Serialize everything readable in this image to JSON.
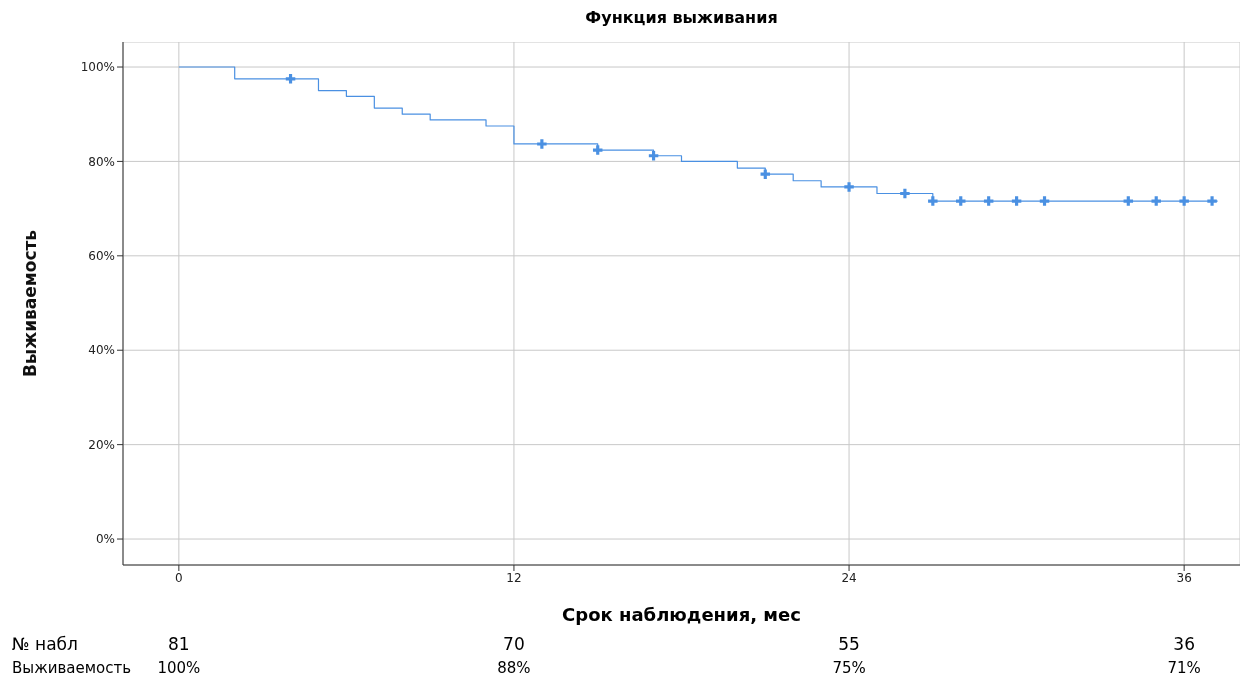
{
  "chart_data": {
    "type": "step",
    "title": "Функция выживания",
    "xlabel": "Срок наблюдения, мес",
    "ylabel": "Выживаемость",
    "xlim": [
      -2,
      38
    ],
    "xticks": [
      0,
      12,
      24,
      36
    ],
    "ylim": [
      -5.5,
      105.3
    ],
    "yticks": [
      {
        "value": 0,
        "label": "0%"
      },
      {
        "value": 20,
        "label": "20%"
      },
      {
        "value": 40,
        "label": "40%"
      },
      {
        "value": 60,
        "label": "60%"
      },
      {
        "value": 80,
        "label": "80%"
      },
      {
        "value": 100,
        "label": "100%"
      }
    ],
    "grid": true,
    "legend": false,
    "series": [
      {
        "type": "step",
        "color": "#4a90e2",
        "marker": "none",
        "x": [
          0,
          2,
          5,
          6,
          7,
          8,
          9,
          11,
          12,
          15,
          17,
          18,
          20,
          21,
          22,
          23,
          25,
          27,
          37.2
        ],
        "values": [
          100,
          97.5,
          95,
          93.8,
          91.3,
          90,
          88.8,
          87.5,
          83.7,
          82.4,
          81.2,
          80,
          78.6,
          77.3,
          75.9,
          74.6,
          73.2,
          71.6,
          71.6
        ]
      },
      {
        "type": "scatter",
        "color": "#4a90e2",
        "marker": "cross",
        "x": [
          4,
          13,
          15,
          17,
          21,
          24,
          26,
          27,
          28,
          29,
          30,
          31,
          34,
          35,
          36,
          37
        ],
        "values": [
          97.5,
          83.7,
          82.4,
          81.2,
          77.3,
          74.6,
          73.2,
          71.6,
          71.6,
          71.6,
          71.6,
          71.6,
          71.6,
          71.6,
          71.6,
          71.6
        ]
      }
    ],
    "annotations": [
      "№ набл",
      "81",
      "70",
      "55",
      "36",
      "Выживаемость",
      "100%",
      "88%",
      "75%",
      "71%"
    ]
  }
}
